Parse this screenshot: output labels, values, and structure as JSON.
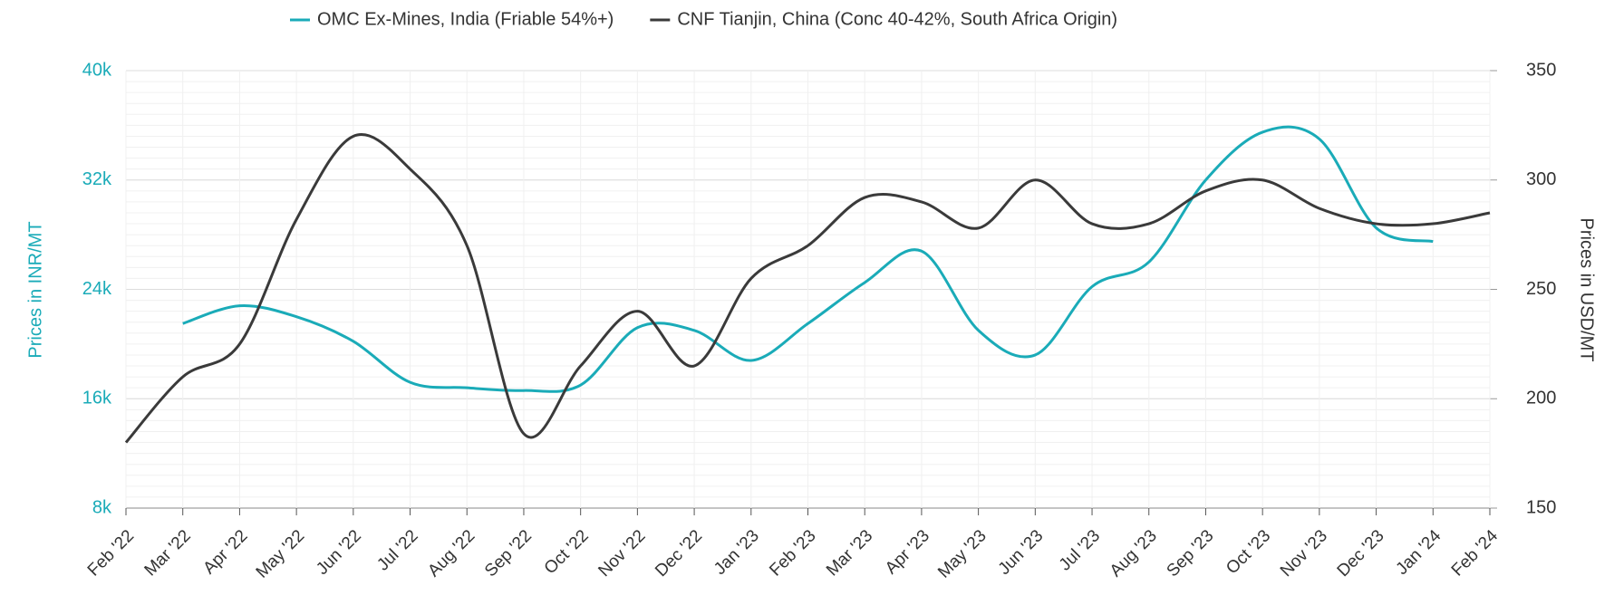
{
  "chart_data": {
    "type": "line",
    "categories": [
      "Feb '22",
      "Mar '22",
      "Apr '22",
      "May '22",
      "Jun '22",
      "Jul '22",
      "Aug '22",
      "Sep '22",
      "Oct '22",
      "Nov '22",
      "Dec '22",
      "Jan '23",
      "Feb '23",
      "Mar '23",
      "Apr '23",
      "May '23",
      "Jun '23",
      "Jul '23",
      "Aug '23",
      "Sep '23",
      "Oct '23",
      "Nov '23",
      "Dec '23",
      "Jan '24",
      "Feb '24"
    ],
    "series": [
      {
        "name": "OMC Ex-Mines, India (Friable 54%+)",
        "color": "#1aabb8",
        "values": [
          null,
          21500,
          22800,
          22000,
          20200,
          17200,
          16800,
          16600,
          17000,
          21200,
          21000,
          18800,
          21500,
          24500,
          26800,
          21000,
          19200,
          24200,
          26000,
          32000,
          35500,
          35000,
          28500,
          27500,
          null
        ]
      },
      {
        "name": "CNF Tianjin, China (Conc 40-42%, South Africa Origin)",
        "color": "#3a3a3a",
        "axis": "y2",
        "values": [
          180,
          210,
          225,
          282,
          320,
          305,
          270,
          184,
          215,
          240,
          215,
          255,
          270,
          292,
          290,
          278,
          300,
          280,
          280,
          295,
          300,
          287,
          280,
          280,
          285
        ]
      }
    ],
    "ylabel": "Prices in INR/MT",
    "y2label": "Prices in USD/MT",
    "ylim": [
      8000,
      40000
    ],
    "yticks": [
      {
        "value": 8000,
        "label": "8k"
      },
      {
        "value": 16000,
        "label": "16k"
      },
      {
        "value": 24000,
        "label": "24k"
      },
      {
        "value": 32000,
        "label": "32k"
      },
      {
        "value": 40000,
        "label": "40k"
      }
    ],
    "y2lim": [
      150,
      350
    ],
    "y2ticks": [
      150,
      200,
      250,
      300,
      350
    ],
    "grid": true,
    "legend": "top"
  }
}
